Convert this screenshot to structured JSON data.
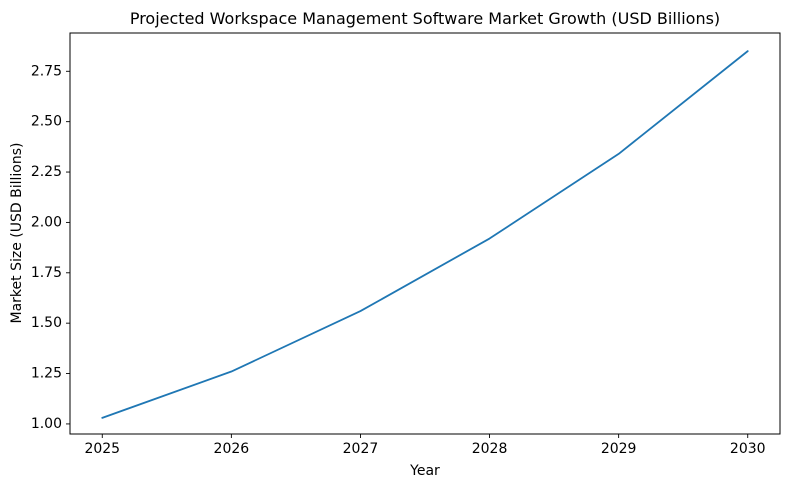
{
  "figure": {
    "background": "#ffffff"
  },
  "chart_data": {
    "type": "line",
    "title": "Projected Workspace Management Software Market Growth (USD Billions)",
    "xlabel": "Year",
    "ylabel": "Market Size (USD Billions)",
    "x": [
      2025,
      2026,
      2027,
      2028,
      2029,
      2030
    ],
    "series": [
      {
        "name": "Market Size (USD Billions)",
        "values": [
          1.03,
          1.26,
          1.56,
          1.92,
          2.34,
          2.85
        ]
      }
    ],
    "xticks": [
      2025,
      2026,
      2027,
      2028,
      2029,
      2030
    ],
    "xtick_labels": [
      "2025",
      "2026",
      "2027",
      "2028",
      "2029",
      "2030"
    ],
    "yticks": [
      1.0,
      1.25,
      1.5,
      1.75,
      2.0,
      2.25,
      2.5,
      2.75
    ],
    "ytick_labels": [
      "1.00",
      "1.25",
      "1.50",
      "1.75",
      "2.00",
      "2.25",
      "2.50",
      "2.75"
    ],
    "xlim": [
      2024.75,
      2030.25
    ],
    "ylim": [
      0.95,
      2.94
    ],
    "line_color": "#1f77b4",
    "line_width": 1.8,
    "axis_color": "#000000",
    "background_color": "#ffffff",
    "grid": false,
    "legend": "none"
  }
}
